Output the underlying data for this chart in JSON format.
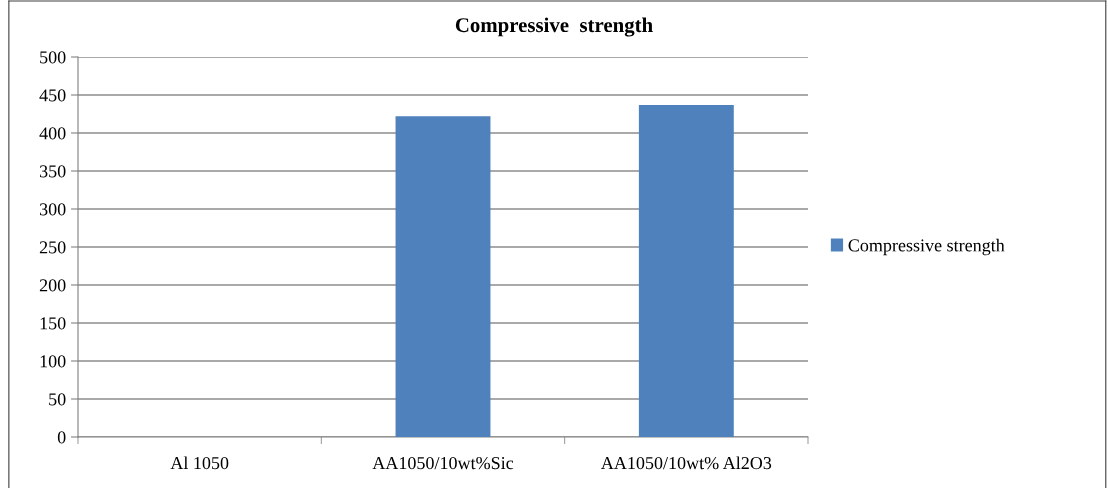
{
  "chart_data": {
    "type": "bar",
    "title": "Compressive  strength",
    "categories": [
      "Al 1050",
      "AA1050/10wt%Sic",
      "AA1050/10wt% Al2O3"
    ],
    "series": [
      {
        "name": "Compressive strength",
        "color": "#4f81bd",
        "values": [
          0,
          422,
          437
        ]
      }
    ],
    "ylim": [
      0,
      500
    ],
    "yticks": [
      0,
      50,
      100,
      150,
      200,
      250,
      300,
      350,
      400,
      450,
      500
    ],
    "grid": "y",
    "legend": "right"
  }
}
